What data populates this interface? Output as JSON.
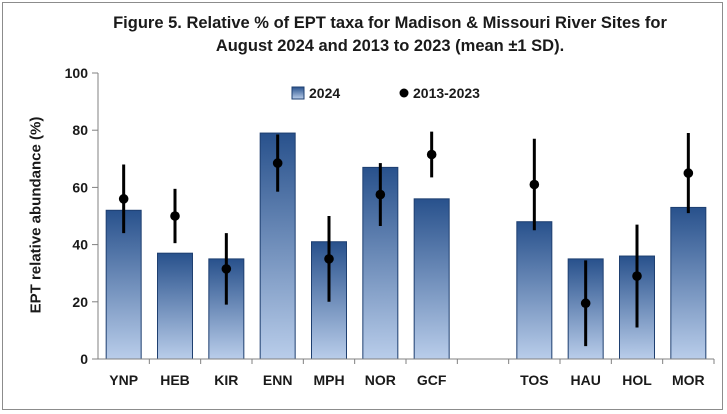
{
  "chart_data": {
    "type": "bar",
    "title_line1": "Figure 5. Relative % of EPT taxa for Madison  & Missouri River Sites for",
    "title_line2": "August 2024 and 2013 to 2023 (mean ±1 SD).",
    "ylabel": "EPT relative abundance (%)",
    "xlabel": "",
    "ylim": [
      0,
      100
    ],
    "yticks": [
      0,
      20,
      40,
      60,
      80,
      100
    ],
    "categories": [
      "YNP",
      "HEB",
      "KIR",
      "ENN",
      "MPH",
      "NOR",
      "GCF",
      "",
      "TOS",
      "HAU",
      "HOL",
      "MOR"
    ],
    "series": [
      {
        "name": "2024",
        "values": [
          52,
          37,
          35,
          79,
          41,
          67,
          56,
          null,
          48,
          35,
          36,
          53
        ]
      },
      {
        "name": "2013-2023",
        "mean": [
          56,
          50,
          31.5,
          68.5,
          35,
          57.5,
          71.5,
          null,
          61,
          19.5,
          29,
          65
        ],
        "sd": [
          12,
          9.5,
          12.5,
          10,
          15,
          11,
          8,
          null,
          16,
          15,
          18,
          14
        ]
      }
    ],
    "legend": [
      "2024",
      "2013-2023"
    ],
    "colors": {
      "bar_top": "#28518c",
      "bar_bottom": "#b9cdea",
      "marker": "#000000",
      "axis": "#808080"
    }
  }
}
